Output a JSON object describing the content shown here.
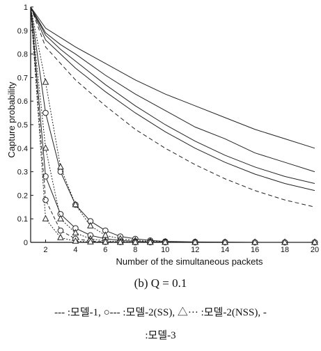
{
  "chart_data": {
    "type": "line",
    "xlabel": "Number of the simultaneous packets",
    "ylabel": "Capture probability",
    "xlim": [
      1,
      20
    ],
    "ylim": [
      0,
      1
    ],
    "x_ticks": [
      "2",
      "4",
      "6",
      "8",
      "10",
      "12",
      "14",
      "16",
      "18",
      "20"
    ],
    "y_ticks": [
      "0",
      "0.1",
      "0.2",
      "0.3",
      "0.4",
      "0.5",
      "0.6",
      "0.7",
      "0.8",
      "0.9",
      "1"
    ],
    "grid": false,
    "series": [
      {
        "style": "solid",
        "x": [
          1,
          2,
          3,
          4,
          6,
          8,
          10,
          12,
          14,
          16,
          18,
          20
        ],
        "y": [
          1.0,
          0.91,
          0.87,
          0.83,
          0.76,
          0.69,
          0.63,
          0.58,
          0.53,
          0.48,
          0.44,
          0.4
        ]
      },
      {
        "style": "solid",
        "x": [
          1,
          2,
          3,
          4,
          6,
          8,
          10,
          12,
          14,
          16,
          18,
          20
        ],
        "y": [
          1.0,
          0.89,
          0.84,
          0.8,
          0.71,
          0.63,
          0.56,
          0.49,
          0.44,
          0.38,
          0.34,
          0.3
        ]
      },
      {
        "style": "solid",
        "x": [
          1,
          2,
          3,
          4,
          6,
          8,
          10,
          12,
          14,
          16,
          18,
          20
        ],
        "y": [
          1.0,
          0.88,
          0.82,
          0.77,
          0.67,
          0.58,
          0.5,
          0.43,
          0.37,
          0.32,
          0.28,
          0.25
        ]
      },
      {
        "style": "solid",
        "x": [
          1,
          2,
          3,
          4,
          6,
          8,
          10,
          12,
          14,
          16,
          18,
          20
        ],
        "y": [
          1.0,
          0.86,
          0.8,
          0.74,
          0.64,
          0.55,
          0.47,
          0.4,
          0.34,
          0.29,
          0.25,
          0.22
        ]
      },
      {
        "style": "dashed",
        "x": [
          1,
          2,
          3,
          4,
          6,
          8,
          10,
          12,
          14,
          16,
          18,
          20
        ],
        "y": [
          1.0,
          0.83,
          0.76,
          0.69,
          0.58,
          0.48,
          0.4,
          0.33,
          0.27,
          0.22,
          0.18,
          0.15
        ]
      },
      {
        "style": "solid-circle",
        "x": [
          1,
          2,
          3,
          4,
          5,
          6,
          7,
          8,
          9,
          10,
          12,
          14,
          16,
          18,
          20
        ],
        "y": [
          1.0,
          0.55,
          0.3,
          0.16,
          0.09,
          0.05,
          0.025,
          0.015,
          0.008,
          0.004,
          0.002,
          0.001,
          0.0,
          0.0,
          0.0
        ]
      },
      {
        "style": "solid-circle",
        "x": [
          1,
          2,
          3,
          4,
          5,
          6,
          7,
          8,
          9,
          10,
          12,
          14,
          16,
          18,
          20
        ],
        "y": [
          1.0,
          0.28,
          0.12,
          0.06,
          0.03,
          0.015,
          0.008,
          0.004,
          0.002,
          0.001,
          0.0,
          0.0,
          0.0,
          0.0,
          0.0
        ]
      },
      {
        "style": "dotted-triangle",
        "x": [
          1,
          2,
          3,
          4,
          5,
          6,
          7,
          8,
          9,
          10,
          12,
          14,
          16,
          18,
          20
        ],
        "y": [
          1.0,
          0.68,
          0.32,
          0.16,
          0.07,
          0.03,
          0.015,
          0.008,
          0.004,
          0.002,
          0.001,
          0.0,
          0.0,
          0.0,
          0.0
        ]
      },
      {
        "style": "dotted-triangle",
        "x": [
          1,
          2,
          3,
          4,
          5,
          6,
          7,
          8,
          9,
          10,
          12,
          14,
          16,
          18,
          20
        ],
        "y": [
          1.0,
          0.4,
          0.1,
          0.04,
          0.015,
          0.006,
          0.003,
          0.001,
          0.0,
          0.0,
          0.0,
          0.0,
          0.0,
          0.0,
          0.0
        ]
      },
      {
        "style": "solid-circle",
        "x": [
          1,
          2,
          3,
          4,
          5,
          6,
          7,
          8,
          9,
          10,
          12,
          14,
          16,
          18,
          20
        ],
        "y": [
          1.0,
          0.18,
          0.05,
          0.015,
          0.006,
          0.002,
          0.001,
          0.0,
          0.0,
          0.0,
          0.0,
          0.0,
          0.0,
          0.0,
          0.0
        ]
      },
      {
        "style": "dotted-triangle",
        "x": [
          1,
          2,
          3,
          4,
          5,
          6,
          7,
          8,
          9,
          10,
          12,
          14,
          16,
          18,
          20
        ],
        "y": [
          1.0,
          0.1,
          0.02,
          0.005,
          0.002,
          0.001,
          0.0,
          0.0,
          0.0,
          0.0,
          0.0,
          0.0,
          0.0,
          0.0,
          0.0
        ]
      }
    ]
  },
  "caption": "(b)  Q  =  0.1",
  "legend": {
    "line1": "--- :모델-1,  ○--- :모델-2(SS),  △··· :모델-2(NSS),  -",
    "line2": ":모델-3"
  }
}
